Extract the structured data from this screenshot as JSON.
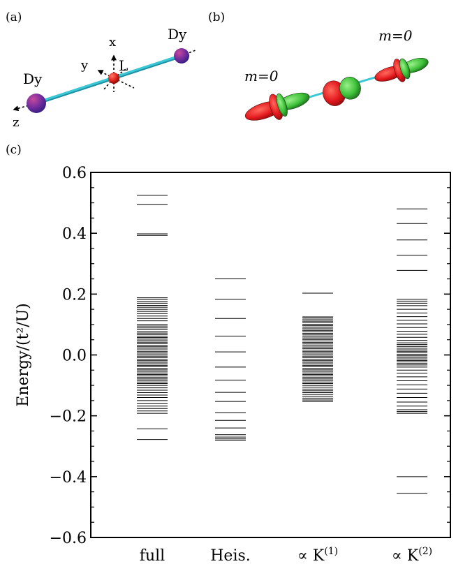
{
  "panels": {
    "a": {
      "label": "(a)",
      "atom_left": "Dy",
      "atom_right": "Dy",
      "ligand": "L",
      "axis_x": "x",
      "axis_y": "y",
      "axis_z": "z",
      "colors": {
        "dy": "#7a2fa0",
        "ligand": "#e0241b",
        "bond": "#39c8d6"
      }
    },
    "b": {
      "label": "(b)",
      "m_left": "m=0",
      "m_right": "m=0",
      "colors": {
        "lobe_red": "#e3191d",
        "lobe_green": "#3fc23a"
      }
    },
    "c": {
      "label": "(c)"
    }
  },
  "chart_data": {
    "type": "spectrum",
    "ylabel": "Energy/(t²/U)",
    "ylim": [
      -0.6,
      0.6
    ],
    "yticks": [
      -0.6,
      -0.4,
      -0.2,
      0.0,
      0.2,
      0.4,
      0.6
    ],
    "ytick_labels": [
      "−0.6",
      "−0.4",
      "−0.2",
      "0.0",
      "0.2",
      "0.4",
      "0.6"
    ],
    "categories": [
      "full",
      "Heis.",
      "∝ K",
      "∝ K"
    ],
    "category_superscripts": [
      "",
      "",
      "(1)",
      "(2)"
    ],
    "series": [
      {
        "levels": [
          0.525,
          0.495,
          0.398,
          0.393,
          0.188,
          0.182,
          0.176,
          0.17,
          0.163,
          0.157,
          0.15,
          0.143,
          0.136,
          0.128,
          0.12,
          0.112,
          0.1,
          0.095,
          0.089,
          0.083,
          0.077,
          0.072,
          0.067,
          0.062,
          0.057,
          0.052,
          0.047,
          0.042,
          0.037,
          0.032,
          0.027,
          0.022,
          0.017,
          0.011,
          0.006,
          0.001,
          -0.004,
          -0.009,
          -0.014,
          -0.019,
          -0.024,
          -0.029,
          -0.034,
          -0.039,
          -0.044,
          -0.049,
          -0.054,
          -0.059,
          -0.064,
          -0.069,
          -0.074,
          -0.079,
          -0.084,
          -0.089,
          -0.094,
          -0.1,
          -0.108,
          -0.116,
          -0.124,
          -0.132,
          -0.14,
          -0.15,
          -0.16,
          -0.168,
          -0.176,
          -0.184,
          -0.192,
          -0.243,
          -0.278
        ]
      },
      {
        "levels": [
          0.25,
          0.183,
          0.12,
          0.062,
          0.01,
          -0.04,
          -0.083,
          -0.123,
          -0.153,
          -0.19,
          -0.215,
          -0.24,
          -0.262,
          -0.27,
          -0.276,
          -0.281
        ]
      },
      {
        "levels": [
          0.203,
          0.125,
          0.121,
          0.116,
          0.111,
          0.106,
          0.101,
          0.096,
          0.091,
          0.086,
          0.081,
          0.076,
          0.071,
          0.066,
          0.061,
          0.056,
          0.051,
          0.046,
          0.041,
          0.036,
          0.031,
          0.026,
          0.021,
          0.016,
          0.011,
          0.006,
          0.001,
          -0.004,
          -0.009,
          -0.014,
          -0.019,
          -0.024,
          -0.029,
          -0.034,
          -0.039,
          -0.044,
          -0.049,
          -0.054,
          -0.059,
          -0.064,
          -0.069,
          -0.074,
          -0.079,
          -0.084,
          -0.089,
          -0.094,
          -0.1,
          -0.106,
          -0.112,
          -0.118,
          -0.124,
          -0.13,
          -0.136,
          -0.142,
          -0.148,
          -0.153
        ]
      },
      {
        "levels": [
          0.48,
          0.432,
          0.378,
          0.328,
          0.278,
          0.183,
          0.177,
          0.17,
          0.162,
          0.15,
          0.138,
          0.126,
          0.114,
          0.102,
          0.09,
          0.078,
          0.068,
          0.058,
          0.048,
          0.04,
          0.034,
          0.028,
          0.022,
          0.017,
          0.012,
          0.007,
          0.002,
          -0.003,
          -0.008,
          -0.013,
          -0.018,
          -0.023,
          -0.028,
          -0.033,
          -0.04,
          -0.05,
          -0.06,
          -0.072,
          -0.085,
          -0.098,
          -0.112,
          -0.126,
          -0.14,
          -0.155,
          -0.168,
          -0.18,
          -0.186,
          -0.192,
          -0.4,
          -0.455
        ]
      }
    ]
  }
}
